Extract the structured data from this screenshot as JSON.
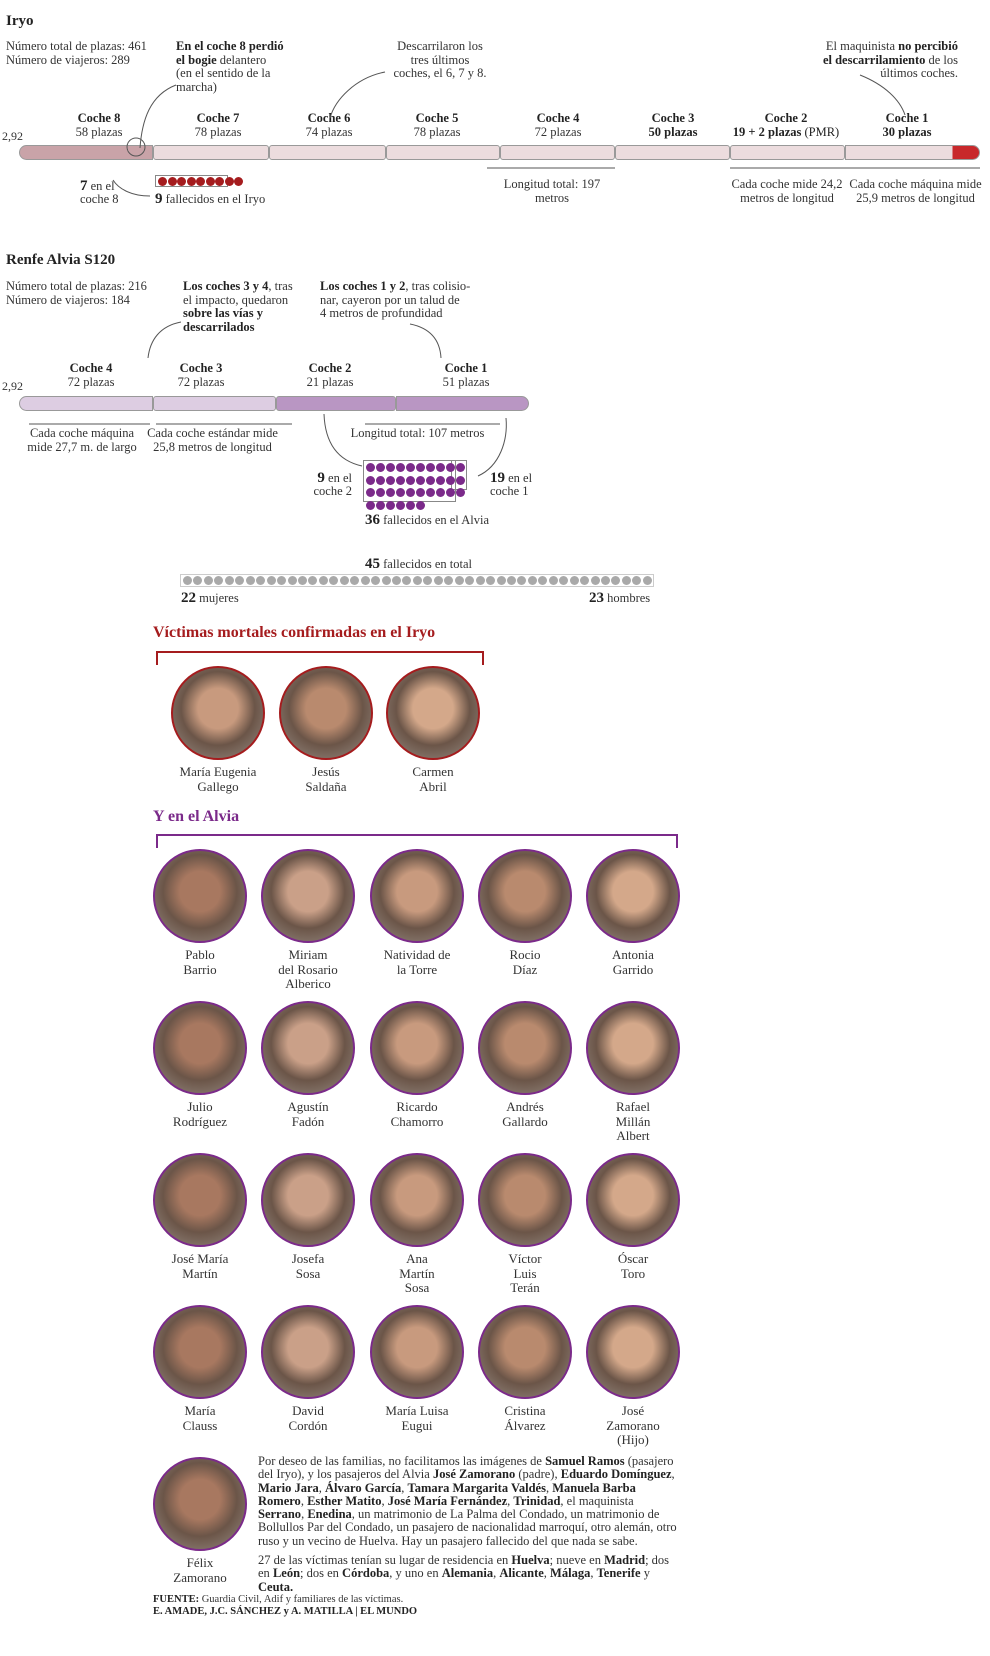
{
  "colors": {
    "iryo": "#a51c1e",
    "alvia": "#7b2a8a",
    "total": "#a9a9a9"
  },
  "iryo": {
    "title": "Iryo",
    "stats": [
      "Número total de plazas: 461",
      "Número de viajeros: 289"
    ],
    "note_bogie": [
      {
        "t": "En el coche 8 perdió\nel bogie",
        "b": true
      },
      {
        "t": " delantero\n(en el sentido de la\nmarcha)",
        "b": false
      }
    ],
    "note_derail": "Descarrilaron los\ntres últimos\ncoches, el 6, 7 y 8.",
    "note_driver": [
      {
        "t": "El maquinista ",
        "b": false
      },
      {
        "t": "no percibió\nel descarrilamiento",
        "b": true
      },
      {
        "t": " de los\núltimos coches.",
        "b": false
      }
    ],
    "height": "2,92",
    "cars": [
      {
        "name": "Coche 8",
        "seats": "58 plazas",
        "bold": false
      },
      {
        "name": "Coche 7",
        "seats": "78 plazas",
        "bold": false
      },
      {
        "name": "Coche 6",
        "seats": "74 plazas",
        "bold": false
      },
      {
        "name": "Coche 5",
        "seats": "78 plazas",
        "bold": false
      },
      {
        "name": "Coche 4",
        "seats": "72 plazas",
        "bold": false
      },
      {
        "name": "Coche 3",
        "seats": "50 plazas",
        "bold": true
      },
      {
        "name": "Coche 2",
        "seats": "19 + 2  plazas",
        "seats_extra": " (PMR)",
        "bold": true
      },
      {
        "name": "Coche 1",
        "seats": "30 plazas",
        "bold": true
      }
    ],
    "coach8_count": "7",
    "coach8_label": " en el\ncoche 8",
    "deaths": "9",
    "deaths_label": " fallecidos en el Iryo",
    "length_total": "Longitud total: 197 metros",
    "coach_len": "Cada coche mide 24,2\nmetros de longitud",
    "engine_len": "Cada coche máquina mide\n25,9 metros de longitud"
  },
  "alvia": {
    "title": "Renfe Alvia S120",
    "stats": [
      "Número total de plazas: 216",
      "Número de viajeros: 184"
    ],
    "note_34": [
      {
        "t": "Los coches 3 y 4",
        "b": true
      },
      {
        "t": ", tras\nel impacto, quedaron\n",
        "b": false
      },
      {
        "t": "sobre las vías y\ndescarrilados",
        "b": true
      }
    ],
    "note_12": [
      {
        "t": "Los coches 1 y 2",
        "b": true
      },
      {
        "t": ", tras colisio-\nnar, cayeron por un talud de\n4 metros de profundidad",
        "b": false
      }
    ],
    "height": "2,92",
    "cars": [
      {
        "name": "Coche 4",
        "seats": "72 plazas"
      },
      {
        "name": "Coche 3",
        "seats": "72 plazas"
      },
      {
        "name": "Coche 2",
        "seats": "21 plazas"
      },
      {
        "name": "Coche 1",
        "seats": "51 plazas"
      }
    ],
    "engine_len": "Cada coche máquina\nmide  27,7 m. de largo",
    "coach_len": "Cada coche estándar mide\n25,8 metros de longitud",
    "length_total": "Longitud total: 107 metros",
    "coach2_count": "9",
    "coach2_label": " en el\ncoche 2",
    "coach1_count": "19",
    "coach1_label": " en el\ncoche 1",
    "deaths": "36",
    "deaths_label": " fallecidos en el Alvia"
  },
  "total": {
    "count": "45",
    "label": " fallecidos en total",
    "women": "22",
    "women_label": " mujeres",
    "men": "23",
    "men_label": " hombres"
  },
  "victims_iryo": {
    "title": "Víctimas mortales confirmadas en el Iryo",
    "names": [
      "María Eugenia\nGallego",
      "Jesús\nSaldaña",
      "Carmen\nAbril"
    ]
  },
  "victims_alvia": {
    "title": "Y en el Alvia",
    "names": [
      "Pablo\nBarrio",
      "Miriam\ndel Rosario\nAlberico",
      "Natividad de\nla Torre",
      "Rocio\nDíaz",
      "Antonia\nGarrido",
      "Julio\nRodríguez",
      "Agustín\nFadón",
      "Ricardo\nChamorro",
      "Andrés\nGallardo",
      "Rafael\nMillán\nAlbert",
      "José María\nMartín",
      "Josefa\nSosa",
      "Ana\nMartín\nSosa",
      "Víctor\nLuis\nTerán",
      "Óscar\nToro",
      "María\nClauss",
      "David\nCordón",
      "María Luisa\nEugui",
      "Cristina\nÁlvarez",
      "José\nZamorano\n(Hijo)",
      "Félix\nZamorano"
    ]
  },
  "note_paragraphs": [
    [
      {
        "t": "Por deseo de las familias, no facilitamos las imágenes de ",
        "b": false
      },
      {
        "t": "Samuel Ramos",
        "b": true
      },
      {
        "t": " (pasajero del Iryo), y los pasajeros del Alvia ",
        "b": false
      },
      {
        "t": "José Zamorano",
        "b": true
      },
      {
        "t": " (padre), ",
        "b": false
      },
      {
        "t": "Eduardo Domínguez",
        "b": true
      },
      {
        "t": ", ",
        "b": false
      },
      {
        "t": "Mario Jara",
        "b": true
      },
      {
        "t": ", ",
        "b": false
      },
      {
        "t": "Álvaro García",
        "b": true
      },
      {
        "t": ", ",
        "b": false
      },
      {
        "t": "Tamara Margarita Valdés",
        "b": true
      },
      {
        "t": ", ",
        "b": false
      },
      {
        "t": "Manuela Barba Romero",
        "b": true
      },
      {
        "t": ", ",
        "b": false
      },
      {
        "t": "Esther Matito",
        "b": true
      },
      {
        "t": ", ",
        "b": false
      },
      {
        "t": "José María Fernández",
        "b": true
      },
      {
        "t": ", ",
        "b": false
      },
      {
        "t": "Trinidad",
        "b": true
      },
      {
        "t": ", el maquinista ",
        "b": false
      },
      {
        "t": "Serrano",
        "b": true
      },
      {
        "t": ", ",
        "b": false
      },
      {
        "t": "Enedina",
        "b": true
      },
      {
        "t": ", un matrimonio de La Palma del Condado, un matrimonio de Bollullos Par del Condado, un pasajero de nacionalidad marroquí, otro alemán, otro ruso y un vecino de Huelva. Hay un pasajero fallecido del que nada se sabe.",
        "b": false
      }
    ],
    [
      {
        "t": "27 de las víctimas tenían su lugar de residencia en ",
        "b": false
      },
      {
        "t": "Huelva",
        "b": true
      },
      {
        "t": "; nueve en ",
        "b": false
      },
      {
        "t": "Madrid",
        "b": true
      },
      {
        "t": "; dos en ",
        "b": false
      },
      {
        "t": "León",
        "b": true
      },
      {
        "t": "; dos en ",
        "b": false
      },
      {
        "t": "Córdoba",
        "b": true
      },
      {
        "t": ", y uno en ",
        "b": false
      },
      {
        "t": "Alemania",
        "b": true
      },
      {
        "t": ", ",
        "b": false
      },
      {
        "t": "Alicante",
        "b": true
      },
      {
        "t": ", ",
        "b": false
      },
      {
        "t": "Málaga",
        "b": true
      },
      {
        "t": ", ",
        "b": false
      },
      {
        "t": "Tenerife",
        "b": true
      },
      {
        "t": " y ",
        "b": false
      },
      {
        "t": "Ceuta.",
        "b": true
      }
    ]
  ],
  "source": {
    "label": "FUENTE:",
    "text": " Guardia Civil, Adif y familiares de las víctimas.",
    "credits": "E. AMADE, J.C. SÁNCHEZ y A. MATILLA | EL MUNDO"
  }
}
